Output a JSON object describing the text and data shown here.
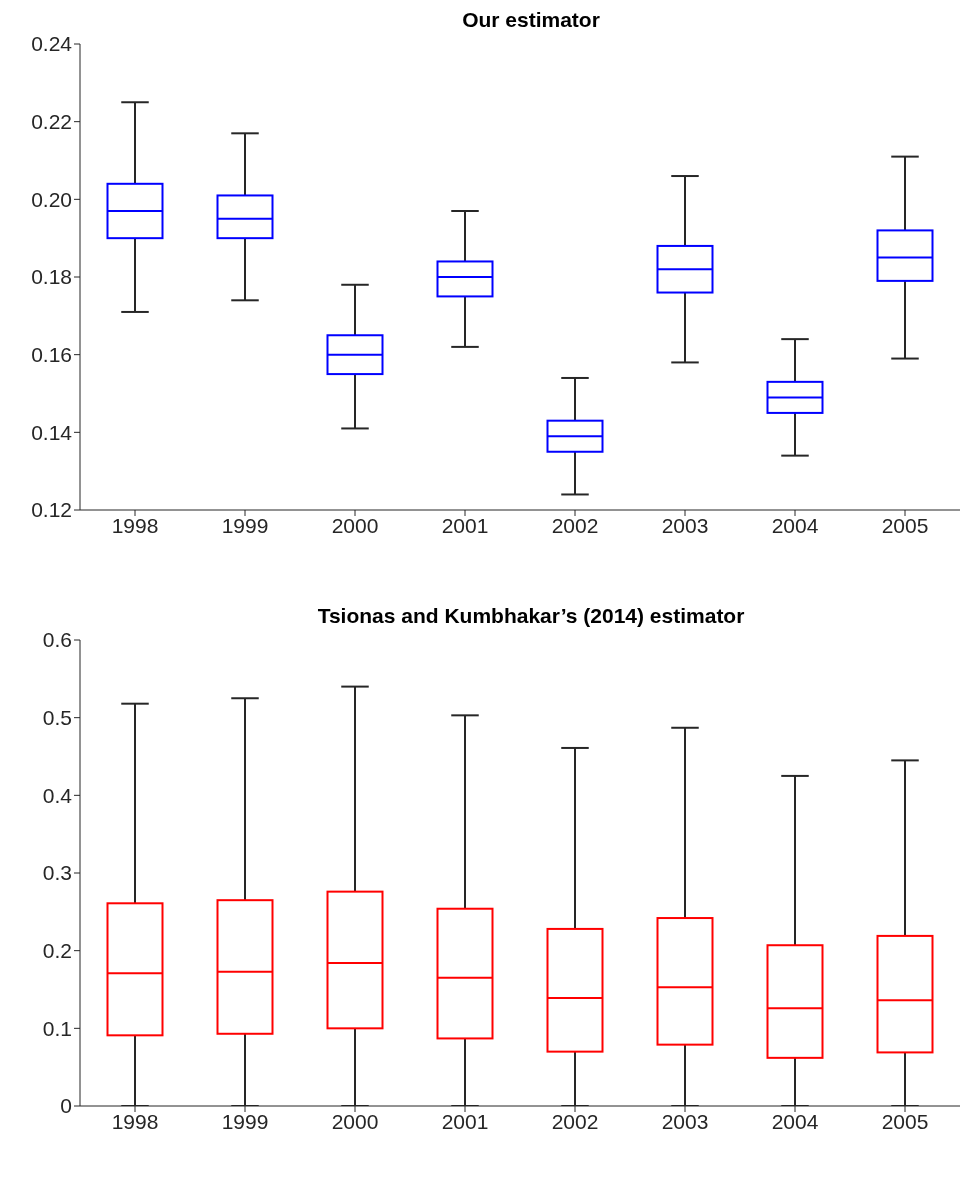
{
  "chart_data": [
    {
      "type": "box",
      "title": "Our estimator",
      "categories": [
        "1998",
        "1999",
        "2000",
        "2001",
        "2002",
        "2003",
        "2004",
        "2005"
      ],
      "ylim": [
        0.12,
        0.24
      ],
      "yticks": [
        0.12,
        0.14,
        0.16,
        0.18,
        {
          "value": 0.2,
          "label": "0.20"
        },
        0.22,
        0.24
      ],
      "grid": false,
      "series": [
        {
          "color": "#0000ff",
          "boxes": [
            {
              "low": 0.171,
              "q1": 0.19,
              "median": 0.197,
              "q3": 0.204,
              "high": 0.225
            },
            {
              "low": 0.174,
              "q1": 0.19,
              "median": 0.195,
              "q3": 0.201,
              "high": 0.217
            },
            {
              "low": 0.141,
              "q1": 0.155,
              "median": 0.16,
              "q3": 0.165,
              "high": 0.178
            },
            {
              "low": 0.162,
              "q1": 0.175,
              "median": 0.18,
              "q3": 0.184,
              "high": 0.197
            },
            {
              "low": 0.124,
              "q1": 0.135,
              "median": 0.139,
              "q3": 0.143,
              "high": 0.154
            },
            {
              "low": 0.158,
              "q1": 0.176,
              "median": 0.182,
              "q3": 0.188,
              "high": 0.206
            },
            {
              "low": 0.134,
              "q1": 0.145,
              "median": 0.149,
              "q3": 0.153,
              "high": 0.164
            },
            {
              "low": 0.159,
              "q1": 0.179,
              "median": 0.185,
              "q3": 0.192,
              "high": 0.211
            }
          ]
        }
      ]
    },
    {
      "type": "box",
      "title": "Tsionas and Kumbhakar’s (2014) estimator",
      "categories": [
        "1998",
        "1999",
        "2000",
        "2001",
        "2002",
        "2003",
        "2004",
        "2005"
      ],
      "ylim": [
        0,
        0.6
      ],
      "yticks": [
        0,
        0.1,
        0.2,
        0.3,
        0.4,
        0.5,
        0.6
      ],
      "grid": false,
      "series": [
        {
          "color": "#ff0000",
          "boxes": [
            {
              "low": 0,
              "q1": 0.091,
              "median": 0.171,
              "q3": 0.261,
              "high": 0.518
            },
            {
              "low": 0,
              "q1": 0.093,
              "median": 0.173,
              "q3": 0.265,
              "high": 0.525
            },
            {
              "low": 0,
              "q1": 0.1,
              "median": 0.184,
              "q3": 0.276,
              "high": 0.54
            },
            {
              "low": 0,
              "q1": 0.087,
              "median": 0.165,
              "q3": 0.254,
              "high": 0.503
            },
            {
              "low": 0,
              "q1": 0.07,
              "median": 0.139,
              "q3": 0.228,
              "high": 0.461
            },
            {
              "low": 0,
              "q1": 0.079,
              "median": 0.153,
              "q3": 0.242,
              "high": 0.487
            },
            {
              "low": 0,
              "q1": 0.062,
              "median": 0.126,
              "q3": 0.207,
              "high": 0.425
            },
            {
              "low": 0,
              "q1": 0.069,
              "median": 0.136,
              "q3": 0.219,
              "high": 0.445
            }
          ]
        }
      ]
    }
  ]
}
